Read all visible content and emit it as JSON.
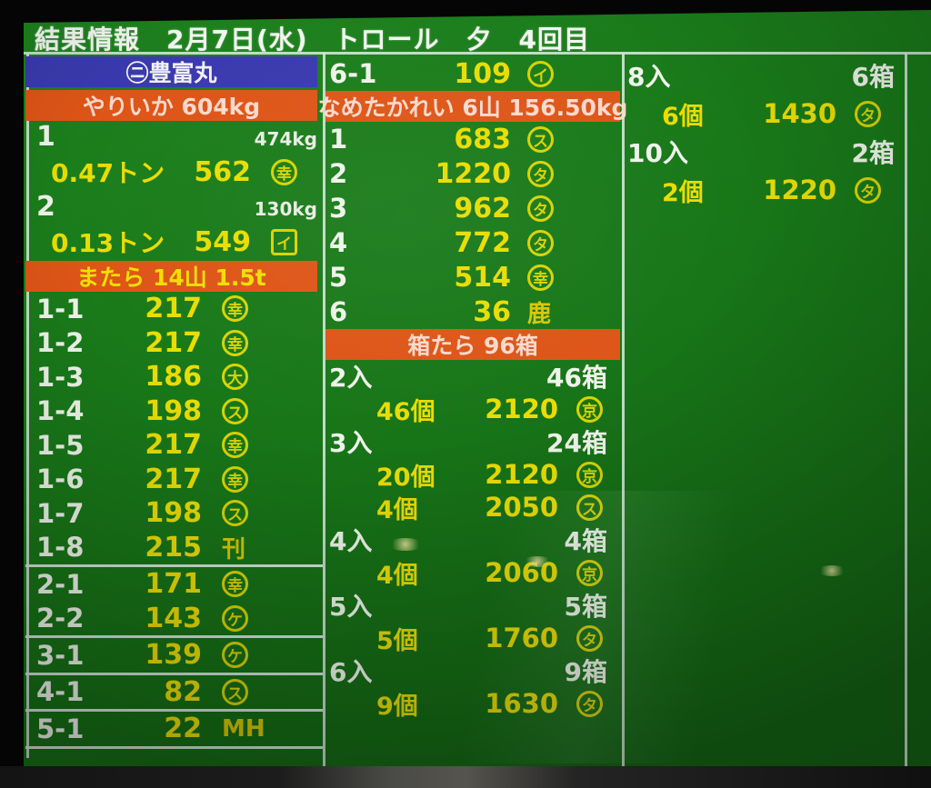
{
  "header": {
    "title": "結果情報　2月7日(水)　トロール　夕　4回目"
  },
  "colors": {
    "screen_green": "#187718",
    "banner_blue": "#3a3aae",
    "banner_orange": "#de5517",
    "number_yellow": "#e9dd00",
    "label_white": "#eef4ea",
    "header_pink": "#ffd9cc"
  },
  "left_column": {
    "vessel_banner": "㋥豊富丸",
    "yariika": {
      "header": "やりいか 604kg",
      "lots": [
        {
          "no": "1",
          "weight": "474kg",
          "quantity": "0.47トン",
          "price": "562",
          "buyer": {
            "shape": "circle",
            "char": "幸"
          }
        },
        {
          "no": "2",
          "weight": "130kg",
          "quantity": "0.13トン",
          "price": "549",
          "buyer": {
            "shape": "square",
            "char": "イ"
          }
        }
      ]
    },
    "matara": {
      "header": "またら 14山 1.5t",
      "groups": [
        {
          "rows": [
            {
              "no": "1-1",
              "price": "217",
              "buyer": {
                "shape": "circle",
                "char": "幸"
              }
            },
            {
              "no": "1-2",
              "price": "217",
              "buyer": {
                "shape": "circle",
                "char": "幸"
              }
            },
            {
              "no": "1-3",
              "price": "186",
              "buyer": {
                "shape": "circle",
                "char": "大"
              }
            },
            {
              "no": "1-4",
              "price": "198",
              "buyer": {
                "shape": "circle",
                "char": "ス"
              }
            },
            {
              "no": "1-5",
              "price": "217",
              "buyer": {
                "shape": "circle",
                "char": "幸"
              }
            },
            {
              "no": "1-6",
              "price": "217",
              "buyer": {
                "shape": "circle",
                "char": "幸"
              }
            },
            {
              "no": "1-7",
              "price": "198",
              "buyer": {
                "shape": "circle",
                "char": "ス"
              }
            },
            {
              "no": "1-8",
              "price": "215",
              "buyer": {
                "shape": "text",
                "char": "刊"
              }
            }
          ]
        },
        {
          "rows": [
            {
              "no": "2-1",
              "price": "171",
              "buyer": {
                "shape": "circle",
                "char": "幸"
              }
            },
            {
              "no": "2-2",
              "price": "143",
              "buyer": {
                "shape": "circle",
                "char": "ケ"
              }
            }
          ]
        },
        {
          "rows": [
            {
              "no": "3-1",
              "price": "139",
              "buyer": {
                "shape": "circle",
                "char": "ケ"
              }
            }
          ]
        },
        {
          "rows": [
            {
              "no": "4-1",
              "price": "82",
              "buyer": {
                "shape": "circle",
                "char": "ス"
              }
            }
          ]
        },
        {
          "rows": [
            {
              "no": "5-1",
              "price": "22",
              "buyer": {
                "shape": "text",
                "char": "MH"
              }
            }
          ]
        }
      ]
    }
  },
  "middle_column": {
    "carryover_row": {
      "no": "6-1",
      "price": "109",
      "buyer": {
        "shape": "circle",
        "char": "イ"
      }
    },
    "nametagarei": {
      "header": "なめたかれい 6山 156.50kg",
      "rows": [
        {
          "no": "1",
          "price": "683",
          "buyer": {
            "shape": "circle",
            "char": "ス"
          }
        },
        {
          "no": "2",
          "price": "1220",
          "buyer": {
            "shape": "circle",
            "char": "タ"
          }
        },
        {
          "no": "3",
          "price": "962",
          "buyer": {
            "shape": "circle",
            "char": "タ"
          }
        },
        {
          "no": "4",
          "price": "772",
          "buyer": {
            "shape": "circle",
            "char": "タ"
          }
        },
        {
          "no": "5",
          "price": "514",
          "buyer": {
            "shape": "circle",
            "char": "幸"
          }
        },
        {
          "no": "6",
          "price": "36",
          "buyer": {
            "shape": "text",
            "char": "鹿"
          }
        }
      ]
    },
    "hakotara": {
      "header": "箱たら 96箱",
      "entries": [
        {
          "size": "2入",
          "boxes": "46箱",
          "bids": [
            {
              "count": "46個",
              "price": "2120",
              "buyer": {
                "shape": "circle",
                "char": "京"
              }
            }
          ]
        },
        {
          "size": "3入",
          "boxes": "24箱",
          "bids": [
            {
              "count": "20個",
              "price": "2120",
              "buyer": {
                "shape": "circle",
                "char": "京"
              }
            },
            {
              "count": "4個",
              "price": "2050",
              "buyer": {
                "shape": "circle",
                "char": "ス"
              }
            }
          ]
        },
        {
          "size": "4入",
          "boxes": "4箱",
          "bids": [
            {
              "count": "4個",
              "price": "2060",
              "buyer": {
                "shape": "circle",
                "char": "京"
              }
            }
          ]
        },
        {
          "size": "5入",
          "boxes": "5箱",
          "bids": [
            {
              "count": "5個",
              "price": "1760",
              "buyer": {
                "shape": "circle",
                "char": "タ"
              }
            }
          ]
        },
        {
          "size": "6入",
          "boxes": "9箱",
          "bids": [
            {
              "count": "9個",
              "price": "1630",
              "buyer": {
                "shape": "circle",
                "char": "タ"
              }
            }
          ]
        }
      ]
    }
  },
  "right_column": {
    "entries": [
      {
        "size": "8入",
        "boxes": "6箱",
        "bids": [
          {
            "count": "6個",
            "price": "1430",
            "buyer": {
              "shape": "circle",
              "char": "タ"
            }
          }
        ]
      },
      {
        "size": "10入",
        "boxes": "2箱",
        "bids": [
          {
            "count": "2個",
            "price": "1220",
            "buyer": {
              "shape": "circle",
              "char": "タ"
            }
          }
        ]
      }
    ]
  }
}
